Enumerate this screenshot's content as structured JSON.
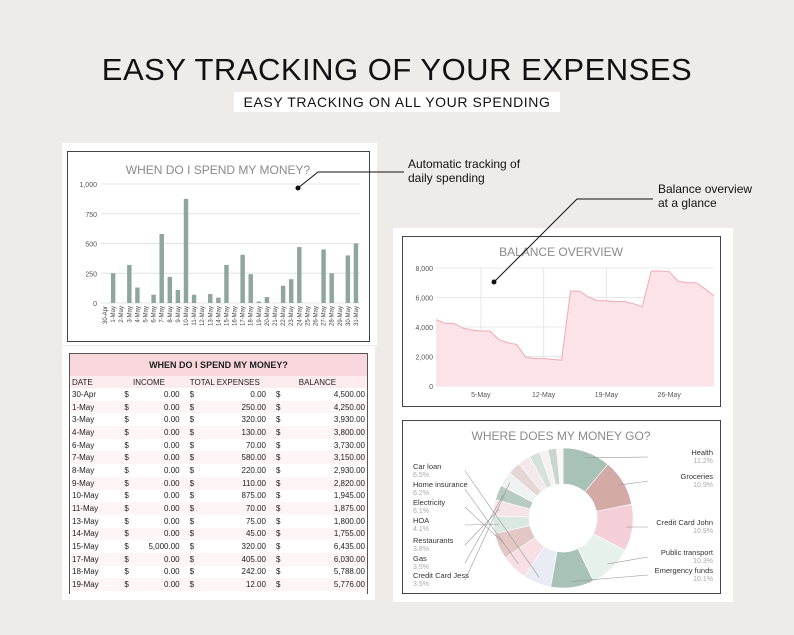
{
  "header": {
    "title": "EASY TRACKING OF YOUR EXPENSES",
    "subtitle": "EASY TRACKING ON ALL YOUR SPENDING"
  },
  "annotations": {
    "daily": [
      "Automatic tracking of",
      "daily spending"
    ],
    "balance": [
      "Balance overview",
      "at a glance"
    ]
  },
  "colors": {
    "bar": "#8ea69d",
    "area_fill": "#fbe3e7",
    "area_line": "#f2a9b6",
    "table_header": "#f8d7dc"
  },
  "chart_data": [
    {
      "type": "bar",
      "title": "WHEN DO I SPEND MY MONEY?",
      "categories": [
        "30-Apr",
        "1-May",
        "2-May",
        "3-May",
        "4-May",
        "5-May",
        "6-May",
        "7-May",
        "8-May",
        "9-May",
        "10-May",
        "11-May",
        "12-May",
        "13-May",
        "14-May",
        "15-May",
        "16-May",
        "17-May",
        "18-May",
        "19-May",
        "20-May",
        "21-May",
        "22-May",
        "23-May",
        "24-May",
        "25-May",
        "26-May",
        "27-May",
        "28-May",
        "29-May",
        "30-May",
        "31-May"
      ],
      "values": [
        0,
        250,
        0,
        320,
        130,
        0,
        70,
        580,
        220,
        110,
        875,
        70,
        0,
        75,
        45,
        320,
        0,
        405,
        242,
        12,
        50,
        0,
        145,
        200,
        470,
        0,
        0,
        450,
        250,
        0,
        400,
        500
      ],
      "yticks": [
        "0",
        "250",
        "500",
        "750",
        "1,000"
      ],
      "ylim": [
        0,
        1000
      ],
      "grid": true
    },
    {
      "type": "area",
      "title": "BALANCE OVERVIEW",
      "x": [
        "30-Apr",
        "1-May",
        "2-May",
        "3-May",
        "4-May",
        "5-May",
        "6-May",
        "7-May",
        "8-May",
        "9-May",
        "10-May",
        "11-May",
        "12-May",
        "13-May",
        "14-May",
        "15-May",
        "16-May",
        "17-May",
        "18-May",
        "19-May",
        "20-May",
        "21-May",
        "22-May",
        "23-May",
        "24-May",
        "25-May",
        "26-May",
        "27-May",
        "28-May",
        "29-May",
        "30-May",
        "31-May"
      ],
      "values": [
        4500,
        4250,
        4250,
        3930,
        3800,
        3730,
        3730,
        3150,
        2930,
        2820,
        1945,
        1875,
        1875,
        1800,
        1755,
        6435,
        6435,
        6030,
        5788,
        5776,
        5726,
        5726,
        5581,
        5381,
        7800,
        7800,
        7750,
        7100,
        7000,
        7000,
        6600,
        6100
      ],
      "yticks": [
        "0",
        "2,000",
        "4,000",
        "6,000",
        "8,000"
      ],
      "xticks": [
        "5-May",
        "12-May",
        "19-May",
        "26-May"
      ],
      "ylim": [
        0,
        8000
      ],
      "grid": true
    },
    {
      "type": "pie",
      "title": "WHERE DOES MY MONEY GO?",
      "slices": [
        {
          "name": "Health",
          "pct": "11.2%",
          "value": 11.2,
          "color": "#a9c2b8"
        },
        {
          "name": "Groceries",
          "pct": "10.9%",
          "value": 10.9,
          "color": "#d3aaa6"
        },
        {
          "name": "Credit Card John",
          "pct": "10.9%",
          "value": 10.9,
          "color": "#f4cfd7"
        },
        {
          "name": "Public transport",
          "pct": "10.3%",
          "value": 10.3,
          "color": "#e6f1ec"
        },
        {
          "name": "Emergency funds",
          "pct": "10.1%",
          "value": 10.1,
          "color": "#a9c2b8"
        },
        {
          "name": "Car loan",
          "pct": "6.5%",
          "value": 6.5,
          "color": "#e9ecf4"
        },
        {
          "name": "Home insurance",
          "pct": "6.2%",
          "value": 6.2,
          "color": "#f8dfe3"
        },
        {
          "name": "Electricity",
          "pct": "6.1%",
          "value": 6.1,
          "color": "#e2c7c4"
        },
        {
          "name": "HOA",
          "pct": "4.1%",
          "value": 4.1,
          "color": "#dbe7e1"
        },
        {
          "name": "Restaurants",
          "pct": "3.8%",
          "value": 3.8,
          "color": "#f6e4e8"
        },
        {
          "name": "Gas",
          "pct": "3.5%",
          "value": 3.5,
          "color": "#b8cbc3"
        },
        {
          "name": "Credit Card Jess",
          "pct": "3.5%",
          "value": 3.5,
          "color": "#eef2f0"
        },
        {
          "name": "",
          "pct": "",
          "value": 3.0,
          "color": "#e4d6d4"
        },
        {
          "name": "",
          "pct": "",
          "value": 3.0,
          "color": "#f3e9eb"
        },
        {
          "name": "",
          "pct": "",
          "value": 2.5,
          "color": "#d5e2dc"
        },
        {
          "name": "",
          "pct": "",
          "value": 2.0,
          "color": "#f7f0f1"
        },
        {
          "name": "",
          "pct": "",
          "value": 2.0,
          "color": "#c6d6cf"
        },
        {
          "name": "",
          "pct": "",
          "value": 1.5,
          "color": "#fbf5f6"
        }
      ]
    },
    {
      "type": "table",
      "title": "WHEN DO I SPEND MY MONEY?",
      "columns": [
        "DATE",
        "INCOME",
        "TOTAL EXPENSES",
        "BALANCE"
      ],
      "currency": "$",
      "rows": [
        [
          "30-Apr",
          "0.00",
          "0.00",
          "4,500.00"
        ],
        [
          "1-May",
          "0.00",
          "250.00",
          "4,250.00"
        ],
        [
          "3-May",
          "0.00",
          "320.00",
          "3,930.00"
        ],
        [
          "4-May",
          "0.00",
          "130.00",
          "3,800.00"
        ],
        [
          "6-May",
          "0.00",
          "70.00",
          "3,730.00"
        ],
        [
          "7-May",
          "0.00",
          "580.00",
          "3,150.00"
        ],
        [
          "8-May",
          "0.00",
          "220.00",
          "2,930.00"
        ],
        [
          "9-May",
          "0.00",
          "110.00",
          "2,820.00"
        ],
        [
          "10-May",
          "0.00",
          "875.00",
          "1,945.00"
        ],
        [
          "11-May",
          "0.00",
          "70.00",
          "1,875.00"
        ],
        [
          "13-May",
          "0.00",
          "75.00",
          "1,800.00"
        ],
        [
          "14-May",
          "0.00",
          "45.00",
          "1,755.00"
        ],
        [
          "15-May",
          "5,000.00",
          "320.00",
          "6,435.00"
        ],
        [
          "17-May",
          "0.00",
          "405.00",
          "6,030.00"
        ],
        [
          "18-May",
          "0.00",
          "242.00",
          "5,788.00"
        ],
        [
          "19-May",
          "0.00",
          "12.00",
          "5,776.00"
        ],
        [
          "20-May",
          "0.00",
          "50.00",
          "5,726.00"
        ],
        [
          "22-May",
          "0.00",
          "145.00",
          "5,581.00"
        ]
      ]
    }
  ]
}
